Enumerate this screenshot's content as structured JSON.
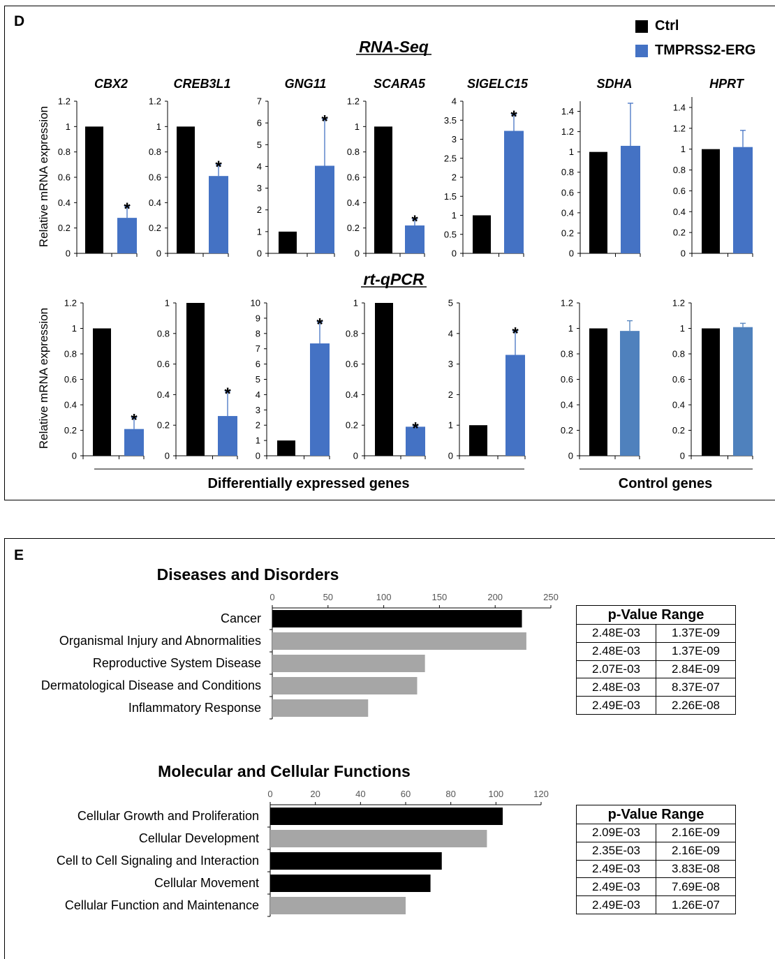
{
  "panel_d": {
    "letter": "D",
    "legend": [
      {
        "label": "Ctrl",
        "color": "#000000"
      },
      {
        "label": "TMPRSS2-ERG",
        "color": "#4472C4"
      }
    ],
    "row_titles": {
      "rna": "RNA-Seq",
      "qpcr": "rt-qPCR"
    },
    "ylabel": "Relative mRNA expression",
    "group_labels": {
      "de": "Differentially expressed genes",
      "control": "Control genes"
    },
    "genes": [
      "CBX2",
      "CREB3L1",
      "GNG11",
      "SCARA5",
      "SIGELC15",
      "SDHA",
      "HPRT"
    ]
  },
  "panel_e": {
    "letter": "E",
    "table_header": "p-Value Range"
  },
  "chart_data": [
    {
      "type": "bar",
      "title": "CBX2",
      "row": "RNA-Seq",
      "categories": [
        "Ctrl",
        "TMPRSS2-ERG"
      ],
      "values": [
        1.0,
        0.28
      ],
      "errors": [
        0,
        0.09
      ],
      "significant": true,
      "ylim": [
        0,
        1.2
      ],
      "yticks": [
        "0",
        "0.2",
        "0.4",
        "0.6",
        "0.8",
        "1",
        "1.2"
      ],
      "colors": [
        "#000000",
        "#4472C4"
      ]
    },
    {
      "type": "bar",
      "title": "CREB3L1",
      "row": "RNA-Seq",
      "categories": [
        "Ctrl",
        "TMPRSS2-ERG"
      ],
      "values": [
        1.0,
        0.61
      ],
      "errors": [
        0,
        0.09
      ],
      "significant": true,
      "ylim": [
        0,
        1.2
      ],
      "yticks": [
        "0",
        "0.2",
        "0.4",
        "0.6",
        "0.8",
        "1",
        "1.2"
      ],
      "colors": [
        "#000000",
        "#4472C4"
      ]
    },
    {
      "type": "bar",
      "title": "GNG11",
      "row": "RNA-Seq",
      "categories": [
        "Ctrl",
        "TMPRSS2-ERG"
      ],
      "values": [
        1.0,
        4.03
      ],
      "errors": [
        0,
        2.15
      ],
      "significant": true,
      "ylim": [
        0,
        7
      ],
      "yticks": [
        "0",
        "1",
        "2",
        "3",
        "4",
        "5",
        "6",
        "7"
      ],
      "colors": [
        "#000000",
        "#4472C4"
      ]
    },
    {
      "type": "bar",
      "title": "SCARA5",
      "row": "RNA-Seq",
      "categories": [
        "Ctrl",
        "TMPRSS2-ERG"
      ],
      "values": [
        1.0,
        0.22
      ],
      "errors": [
        0,
        0.05
      ],
      "significant": true,
      "ylim": [
        0,
        1.2
      ],
      "yticks": [
        "0",
        "0.2",
        "0.4",
        "0.6",
        "0.8",
        "1",
        "1.2"
      ],
      "colors": [
        "#000000",
        "#4472C4"
      ]
    },
    {
      "type": "bar",
      "title": "SIGELC15",
      "row": "RNA-Seq",
      "categories": [
        "Ctrl",
        "TMPRSS2-ERG"
      ],
      "values": [
        1.0,
        3.22
      ],
      "errors": [
        0,
        0.43
      ],
      "significant": true,
      "ylim": [
        0,
        4
      ],
      "yticks": [
        "0",
        "0.5",
        "1",
        "1.5",
        "2",
        "2.5",
        "3",
        "3.5",
        "4"
      ],
      "colors": [
        "#000000",
        "#4472C4"
      ]
    },
    {
      "type": "bar",
      "title": "SDHA",
      "row": "RNA-Seq",
      "categories": [
        "Ctrl",
        "TMPRSS2-ERG"
      ],
      "values": [
        1.0,
        1.06
      ],
      "errors": [
        0,
        0.42
      ],
      "significant": false,
      "ylim": [
        0,
        1.5
      ],
      "yticks": [
        "0",
        "0.2",
        "0.4",
        "0.6",
        "0.8",
        "1",
        "1.2",
        "1.4"
      ],
      "colors": [
        "#000000",
        "#4472C4"
      ]
    },
    {
      "type": "bar",
      "title": "HPRT",
      "row": "RNA-Seq",
      "categories": [
        "Ctrl",
        "TMPRSS2-ERG"
      ],
      "values": [
        1.0,
        1.02
      ],
      "errors": [
        0,
        0.16
      ],
      "significant": false,
      "ylim": [
        0,
        1.5
      ],
      "yticks": [
        "0",
        "0.2",
        "0.4",
        "0.6",
        "0.8",
        "1",
        "1.2",
        "1.4"
      ],
      "colors": [
        "#000000",
        "#4472C4"
      ]
    },
    {
      "type": "bar",
      "title": "",
      "row": "rt-qPCR",
      "categories": [
        "Ctrl",
        "TMPRSS2-ERG"
      ],
      "values": [
        1.0,
        0.21
      ],
      "errors": [
        0,
        0.09
      ],
      "significant": true,
      "ylim": [
        0,
        1.2
      ],
      "yticks": [
        "0",
        "0.2",
        "0.4",
        "0.6",
        "0.8",
        "1",
        "1.2"
      ],
      "colors": [
        "#000000",
        "#4472C4"
      ]
    },
    {
      "type": "bar",
      "title": "",
      "row": "rt-qPCR",
      "categories": [
        "Ctrl",
        "TMPRSS2-ERG"
      ],
      "values": [
        1.0,
        0.26
      ],
      "errors": [
        0,
        0.16
      ],
      "significant": true,
      "ylim": [
        0,
        1
      ],
      "yticks": [
        "0",
        "0.2",
        "0.4",
        "0.6",
        "0.8",
        "1"
      ],
      "colors": [
        "#000000",
        "#4472C4"
      ]
    },
    {
      "type": "bar",
      "title": "",
      "row": "rt-qPCR",
      "categories": [
        "Ctrl",
        "TMPRSS2-ERG"
      ],
      "values": [
        1.0,
        7.35
      ],
      "errors": [
        0,
        1.4
      ],
      "significant": true,
      "ylim": [
        0,
        10
      ],
      "yticks": [
        "0",
        "1",
        "2",
        "3",
        "4",
        "5",
        "6",
        "7",
        "8",
        "9",
        "10"
      ],
      "colors": [
        "#000000",
        "#4472C4"
      ]
    },
    {
      "type": "bar",
      "title": "",
      "row": "rt-qPCR",
      "categories": [
        "Ctrl",
        "TMPRSS2-ERG"
      ],
      "values": [
        1.0,
        0.19
      ],
      "errors": [
        0,
        0.005
      ],
      "significant": true,
      "ylim": [
        0,
        1
      ],
      "yticks": [
        "0",
        "0.2",
        "0.4",
        "0.6",
        "0.8",
        "1"
      ],
      "colors": [
        "#000000",
        "#4472C4"
      ]
    },
    {
      "type": "bar",
      "title": "",
      "row": "rt-qPCR",
      "categories": [
        "Ctrl",
        "TMPRSS2-ERG"
      ],
      "values": [
        1.0,
        3.3
      ],
      "errors": [
        0,
        0.78
      ],
      "significant": true,
      "ylim": [
        0,
        5
      ],
      "yticks": [
        "0",
        "1",
        "2",
        "3",
        "4",
        "5"
      ],
      "colors": [
        "#000000",
        "#4472C4"
      ]
    },
    {
      "type": "bar",
      "title": "",
      "row": "rt-qPCR",
      "categories": [
        "Ctrl",
        "TMPRSS2-ERG"
      ],
      "values": [
        1.0,
        0.98
      ],
      "errors": [
        0,
        0.08
      ],
      "significant": false,
      "ylim": [
        0,
        1.2
      ],
      "yticks": [
        "0",
        "0.2",
        "0.4",
        "0.6",
        "0.8",
        "1",
        "1.2"
      ],
      "colors": [
        "#000000",
        "#4F81BD"
      ]
    },
    {
      "type": "bar",
      "title": "",
      "row": "rt-qPCR",
      "categories": [
        "Ctrl",
        "TMPRSS2-ERG"
      ],
      "values": [
        1.0,
        1.01
      ],
      "errors": [
        0,
        0.03
      ],
      "significant": false,
      "ylim": [
        0,
        1.2
      ],
      "yticks": [
        "0",
        "0.2",
        "0.4",
        "0.6",
        "0.8",
        "1",
        "1.2"
      ],
      "colors": [
        "#000000",
        "#4F81BD"
      ]
    },
    {
      "type": "bar",
      "orientation": "horizontal",
      "title": "Diseases and Disorders",
      "categories": [
        "Cancer",
        "Organismal Injury and Abnormalities",
        "Reproductive System Disease",
        "Dermatological Disease and Conditions",
        "Inflammatory Response"
      ],
      "values": [
        224,
        228,
        137,
        130,
        86
      ],
      "colors": [
        "#000000",
        "#A6A6A6",
        "#A6A6A6",
        "#A6A6A6",
        "#A6A6A6"
      ],
      "xlim": [
        0,
        250
      ],
      "xticks": [
        "0",
        "50",
        "100",
        "150",
        "200",
        "250"
      ],
      "p_value_range": [
        [
          "2.48E-03",
          "1.37E-09"
        ],
        [
          "2.48E-03",
          "1.37E-09"
        ],
        [
          "2.07E-03",
          "2.84E-09"
        ],
        [
          "2.48E-03",
          "8.37E-07"
        ],
        [
          "2.49E-03",
          "2.26E-08"
        ]
      ]
    },
    {
      "type": "bar",
      "orientation": "horizontal",
      "title": "Molecular and Cellular Functions",
      "categories": [
        "Cellular Growth and Proliferation",
        "Cellular Development",
        "Cell to Cell Signaling and Interaction",
        "Cellular Movement",
        "Cellular Function and Maintenance"
      ],
      "values": [
        103,
        96,
        76,
        71,
        60
      ],
      "colors": [
        "#000000",
        "#A6A6A6",
        "#000000",
        "#000000",
        "#A6A6A6"
      ],
      "xlim": [
        0,
        120
      ],
      "xticks": [
        "0",
        "20",
        "40",
        "60",
        "80",
        "100",
        "120"
      ],
      "p_value_range": [
        [
          "2.09E-03",
          "2.16E-09"
        ],
        [
          "2.35E-03",
          "2.16E-09"
        ],
        [
          "2.49E-03",
          "3.83E-08"
        ],
        [
          "2.49E-03",
          "7.69E-08"
        ],
        [
          "2.49E-03",
          "1.26E-07"
        ]
      ]
    }
  ]
}
